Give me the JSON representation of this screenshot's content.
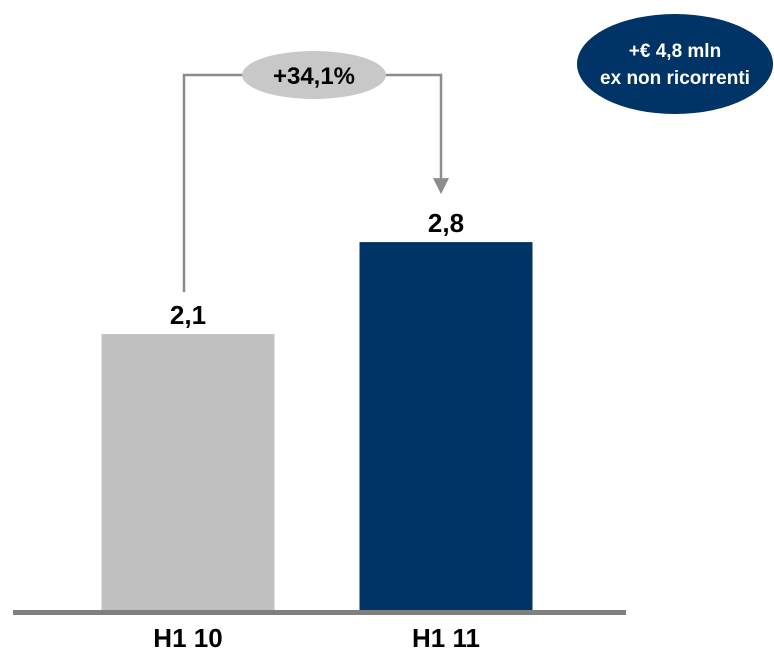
{
  "chart_data": {
    "type": "bar",
    "categories": [
      "H1 10",
      "H1 11"
    ],
    "values": [
      2.1,
      2.8
    ],
    "value_labels": [
      "2,1",
      "2,8"
    ],
    "colors": [
      "#c0c0c0",
      "#003366"
    ],
    "ylim": [
      0,
      4.3
    ],
    "annotations": {
      "growth": "+34,1%",
      "note_line1": "+€ 4,8 mln",
      "note_line2": "ex non ricorrenti"
    }
  },
  "colors": {
    "axis": "#7f7f7f",
    "connector": "#8c8c8c",
    "growth_bubble": "#c8c8c8",
    "note_badge": "#003366"
  }
}
